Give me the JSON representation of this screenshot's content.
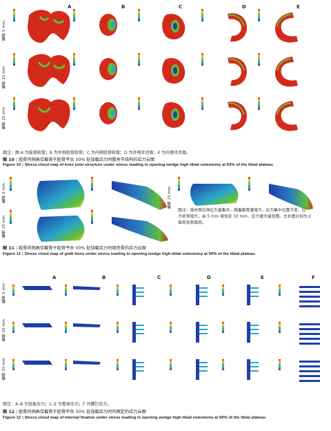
{
  "figure10": {
    "panel_letters": [
      "A",
      "B",
      "C",
      "D",
      "E"
    ],
    "row_labels": [
      "截骨 5 mm",
      "截骨 10 mm",
      "截骨 15 mm"
    ],
    "note": "图注：图 A 为股骨软骨；B 为外侧胫骨软骨；C 为内侧胫骨软骨；D 为外侧半月板；E 为内侧半月板。",
    "caption_cn_num": "图 10",
    "caption_cn": "胫骨内侧高位截骨于胫骨平台 50% 处加载应力时膝关节结构的应力云图",
    "caption_en_num": "Figure 10",
    "caption_en": "Stress cloud map of knee joint structure under stress loading in opening wedge high tibial osteotomy at 50% of the tibial plateau"
  },
  "figure11": {
    "row_labels": [
      "截骨 5 mm",
      "截骨 10 mm",
      "截骨 15 mm"
    ],
    "note_lines": [
      "图注：填充骨后侧应力最集中，随着截骨量增大，应力集中位置不变，应",
      "力逐渐增大，由 5 mm 增加至 10 mm，应力增大最显著。左右图分别为上",
      "面观及侧面观。"
    ],
    "caption_cn_num": "图 11",
    "caption_cn": "胫骨内侧高位截骨于胫骨平台 50% 处加载应力时填充骨的应力云图",
    "caption_en_num": "Figure 11",
    "caption_en": "Stress cloud map of graft bone under stress loading in opening wedge high tibial osteotomy at 50% of the tibial plateau"
  },
  "figure12": {
    "panel_letters": [
      "A",
      "B",
      "C",
      "D",
      "E",
      "F"
    ],
    "row_labels": [
      "截骨 5 mm",
      "截骨 10 mm",
      "截骨 15 mm"
    ],
    "note": "图注：A–B 为钛板应力；C–E 为整体应力；F 为螺钉应力。",
    "caption_cn_num": "图 12",
    "caption_cn": "胫骨内侧高位截骨于胫骨平台 50% 处加载应力时内固定的应力云图",
    "caption_en_num": "Figure 12",
    "caption_en": "Stress cloud map of internal fixation under stress loading in opening wedge high tibial osteotomy at 50% of the tibial plateau"
  },
  "colors": {
    "red": "#d42a1c",
    "green": "#5fbf3a",
    "yellow": "#e9d23a",
    "blue": "#1e3fa8",
    "cyan": "#2aa6c8",
    "caption_blue": "#3a6fb0"
  },
  "icons": [
    "stress-legend",
    "femoral-cartilage-model",
    "tibial-cartilage-model",
    "meniscus-model",
    "graft-bone-model",
    "plate-model",
    "screw-model"
  ]
}
